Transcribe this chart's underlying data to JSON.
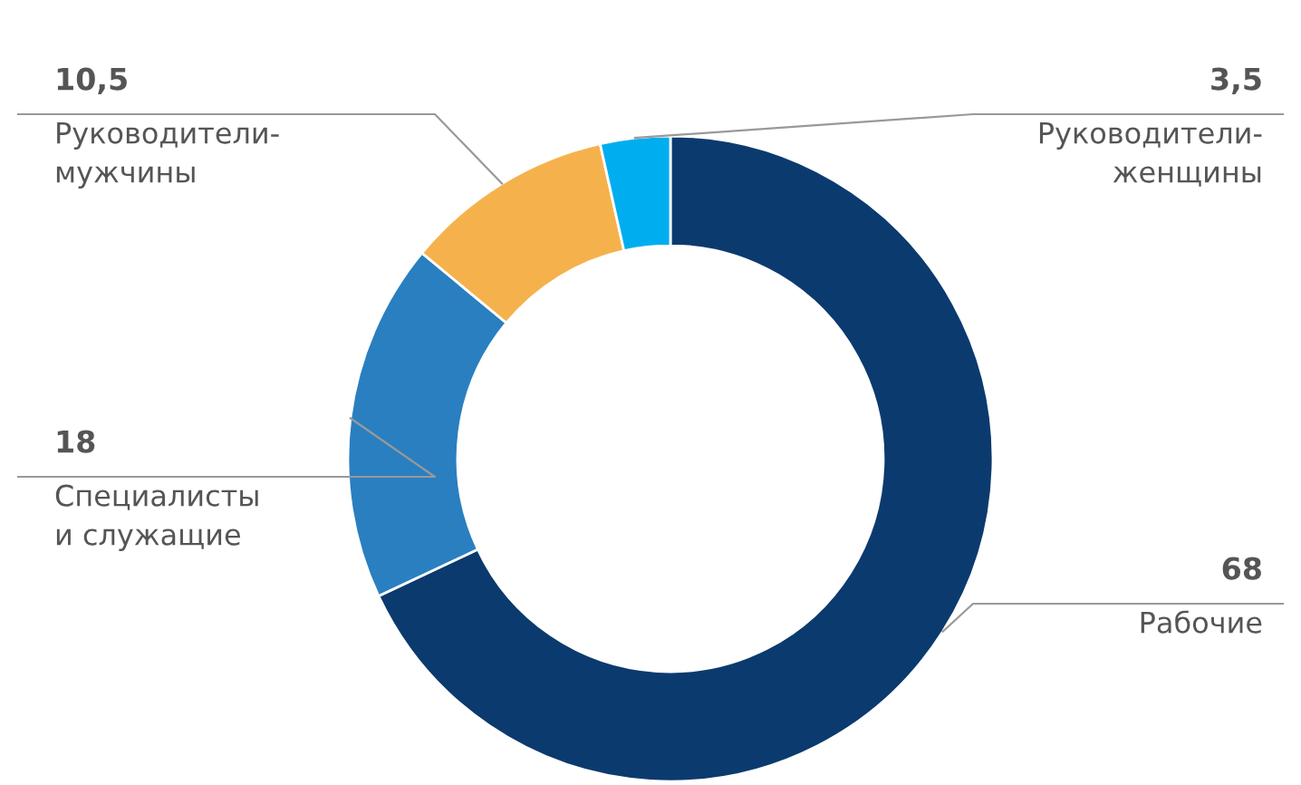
{
  "chart_data": {
    "type": "donut",
    "categories": [
      "Рабочие",
      "Специалисты\nи служащие",
      "Руководители-\nмужчины",
      "Руководители-\nженщины"
    ],
    "values": [
      68,
      18,
      10.5,
      3.5
    ],
    "value_labels": [
      "68",
      "18",
      "10,5",
      "3,5"
    ],
    "colors": [
      "#0b3a6e",
      "#2a7fc0",
      "#f5b24c",
      "#00aeef"
    ]
  }
}
